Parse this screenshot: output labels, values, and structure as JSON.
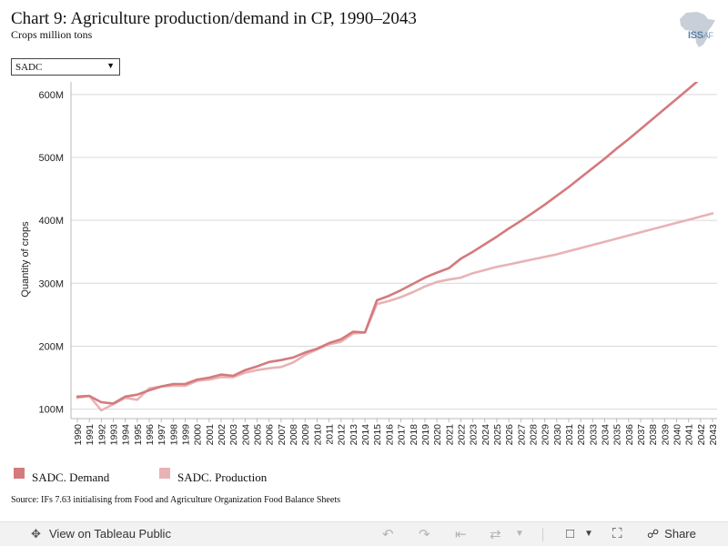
{
  "header": {
    "title": "Chart 9: Agriculture production/demand in CP, 1990–2043",
    "subtitle": "Crops million tons"
  },
  "logo": {
    "text_main": "ISS",
    "text_side": "AF"
  },
  "filter": {
    "selected": "SADC"
  },
  "chart_data": {
    "type": "line",
    "title": "Chart 9: Agriculture production/demand in CP, 1990–2043",
    "subtitle": "Crops million tons",
    "xlabel": "",
    "ylabel": "Quantity of crops",
    "ylim": [
      85,
      620
    ],
    "yticks": [
      100,
      200,
      300,
      400,
      500,
      600
    ],
    "ytick_labels": [
      "100M",
      "200M",
      "300M",
      "400M",
      "500M",
      "600M"
    ],
    "x": [
      1990,
      1991,
      1992,
      1993,
      1994,
      1995,
      1996,
      1997,
      1998,
      1999,
      2000,
      2001,
      2002,
      2003,
      2004,
      2005,
      2006,
      2007,
      2008,
      2009,
      2010,
      2011,
      2012,
      2013,
      2014,
      2015,
      2016,
      2017,
      2018,
      2019,
      2020,
      2021,
      2022,
      2023,
      2024,
      2025,
      2026,
      2027,
      2028,
      2029,
      2030,
      2031,
      2032,
      2033,
      2034,
      2035,
      2036,
      2037,
      2038,
      2039,
      2040,
      2041,
      2042,
      2043
    ],
    "grid": true,
    "legend_position": "bottom-left",
    "series": [
      {
        "name": "SADC. Demand",
        "color": "#d47a7d",
        "values": [
          120,
          121,
          111,
          109,
          120,
          123,
          130,
          136,
          140,
          140,
          147,
          150,
          155,
          153,
          162,
          168,
          175,
          178,
          182,
          190,
          196,
          205,
          211,
          223,
          222,
          273,
          280,
          289,
          299,
          309,
          317,
          324,
          339,
          350,
          362,
          374,
          387,
          399,
          412,
          425,
          439,
          453,
          468,
          483,
          498,
          514,
          529,
          545,
          561,
          577,
          593,
          609,
          625,
          640
        ]
      },
      {
        "name": "SADC. Production",
        "color": "#e8b3b5",
        "values": [
          118,
          121,
          98,
          108,
          118,
          115,
          133,
          136,
          137,
          137,
          145,
          147,
          151,
          151,
          158,
          162,
          165,
          167,
          174,
          186,
          195,
          203,
          207,
          220,
          222,
          267,
          272,
          278,
          286,
          295,
          302,
          306,
          309,
          316,
          321,
          326,
          330,
          334,
          338,
          342,
          346,
          351,
          356,
          361,
          366,
          371,
          376,
          381,
          386,
          391,
          396,
          401,
          406,
          411
        ]
      }
    ]
  },
  "legend": [
    {
      "label": "SADC. Demand",
      "color": "#d47a7d"
    },
    {
      "label": "SADC. Production",
      "color": "#e8b3b5"
    }
  ],
  "source": "Source: IFs 7.63 initialising from Food and Agriculture Organization Food Balance Sheets",
  "footer": {
    "view_label": "View on Tableau Public",
    "share_label": "Share"
  }
}
